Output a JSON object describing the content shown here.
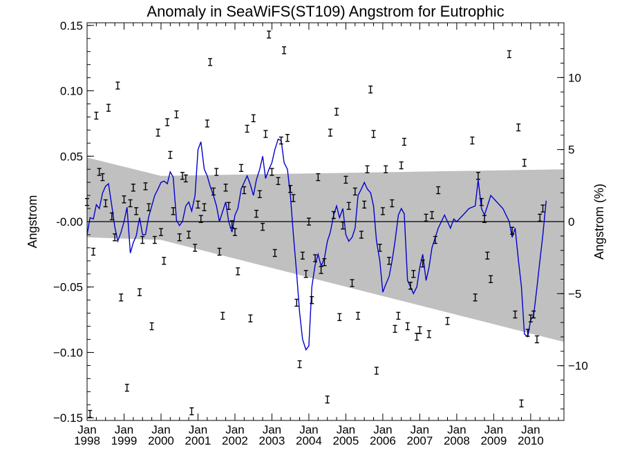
{
  "chart_data": {
    "type": "line",
    "title": "Anomaly in SeaWiFS(ST109) Angstrom for Eutrophic",
    "ylabel": "Angstrom",
    "ylabel_right": "Angstrom (%)",
    "xlim": [
      1998.0,
      2010.9
    ],
    "ylim": [
      -0.152,
      0.152
    ],
    "ylim_right": [
      -13.8,
      13.8
    ],
    "x_ticks": [
      {
        "x": 1998,
        "label_top": "Jan",
        "label_bottom": "1998"
      },
      {
        "x": 1999,
        "label_top": "Jan",
        "label_bottom": "1999"
      },
      {
        "x": 2000,
        "label_top": "Jan",
        "label_bottom": "2000"
      },
      {
        "x": 2001,
        "label_top": "Jan",
        "label_bottom": "2001"
      },
      {
        "x": 2002,
        "label_top": "Jan",
        "label_bottom": "2002"
      },
      {
        "x": 2003,
        "label_top": "Jan",
        "label_bottom": "2003"
      },
      {
        "x": 2004,
        "label_top": "Jan",
        "label_bottom": "2004"
      },
      {
        "x": 2005,
        "label_top": "Jan",
        "label_bottom": "2005"
      },
      {
        "x": 2006,
        "label_top": "Jan",
        "label_bottom": "2006"
      },
      {
        "x": 2007,
        "label_top": "Jan",
        "label_bottom": "2007"
      },
      {
        "x": 2008,
        "label_top": "Jan",
        "label_bottom": "2008"
      },
      {
        "x": 2009,
        "label_top": "Jan",
        "label_bottom": "2009"
      },
      {
        "x": 2010,
        "label_top": "Jan",
        "label_bottom": "2010"
      }
    ],
    "y_ticks": [
      {
        "v": 0.15,
        "label": "0.15"
      },
      {
        "v": 0.1,
        "label": "0.10"
      },
      {
        "v": 0.05,
        "label": "0.05"
      },
      {
        "v": 0.0,
        "label": "-0.00"
      },
      {
        "v": -0.05,
        "label": "−0.05"
      },
      {
        "v": -0.1,
        "label": "−0.10"
      },
      {
        "v": -0.15,
        "label": "−0.15"
      }
    ],
    "y_ticks_right": [
      {
        "v": 10,
        "label": "10"
      },
      {
        "v": 5,
        "label": "5"
      },
      {
        "v": 0,
        "label": "0"
      },
      {
        "v": -5,
        "label": "−5"
      },
      {
        "v": -10,
        "label": "−10"
      }
    ],
    "grey_band": {
      "upper": [
        [
          1998.0,
          0.049
        ],
        [
          2000.0,
          0.035
        ],
        [
          2010.9,
          0.04
        ]
      ],
      "lower": [
        [
          1998.0,
          -0.012
        ],
        [
          2000.0,
          -0.014
        ],
        [
          2010.9,
          -0.092
        ]
      ]
    },
    "colors": {
      "band": "#c0c0c0",
      "line": "#0000cc",
      "points": "#000000",
      "zero_line": "#000000"
    },
    "points": [
      [
        1998.0,
        0.015
      ],
      [
        1998.08,
        -0.147
      ],
      [
        1998.17,
        -0.023
      ],
      [
        1998.25,
        0.081
      ],
      [
        1998.33,
        0.038
      ],
      [
        1998.42,
        0.034
      ],
      [
        1998.5,
        0.014
      ],
      [
        1998.58,
        0.087
      ],
      [
        1998.67,
        0.004
      ],
      [
        1998.75,
        -0.012
      ],
      [
        1998.83,
        0.104
      ],
      [
        1998.92,
        -0.058
      ],
      [
        1999.0,
        0.017
      ],
      [
        1999.08,
        -0.127
      ],
      [
        1999.17,
        0.014
      ],
      [
        1999.25,
        0.026
      ],
      [
        1999.33,
        0.008
      ],
      [
        1999.42,
        -0.054
      ],
      [
        1999.5,
        -0.014
      ],
      [
        1999.58,
        0.027
      ],
      [
        1999.67,
        0.011
      ],
      [
        1999.75,
        -0.08
      ],
      [
        1999.83,
        -0.014
      ],
      [
        1999.92,
        0.068
      ],
      [
        2000.0,
        -0.008
      ],
      [
        2000.08,
        -0.03
      ],
      [
        2000.17,
        0.076
      ],
      [
        2000.25,
        0.051
      ],
      [
        2000.33,
        0.008
      ],
      [
        2000.42,
        0.082
      ],
      [
        2000.5,
        -0.012
      ],
      [
        2000.58,
        0.035
      ],
      [
        2000.67,
        0.033
      ],
      [
        2000.75,
        -0.01
      ],
      [
        2000.83,
        -0.145
      ],
      [
        2000.92,
        -0.02
      ],
      [
        2001.0,
        0.013
      ],
      [
        2001.08,
        0.002
      ],
      [
        2001.17,
        0.011
      ],
      [
        2001.25,
        0.075
      ],
      [
        2001.33,
        0.122
      ],
      [
        2001.42,
        0.023
      ],
      [
        2001.5,
        0.038
      ],
      [
        2001.58,
        -0.023
      ],
      [
        2001.67,
        -0.072
      ],
      [
        2001.75,
        0.026
      ],
      [
        2001.83,
        0.012
      ],
      [
        2001.92,
        -0.002
      ],
      [
        2002.0,
        -0.008
      ],
      [
        2002.08,
        -0.038
      ],
      [
        2002.17,
        0.041
      ],
      [
        2002.25,
        0.024
      ],
      [
        2002.33,
        0.071
      ],
      [
        2002.42,
        -0.074
      ],
      [
        2002.5,
        0.079
      ],
      [
        2002.58,
        0.006
      ],
      [
        2002.67,
        0.021
      ],
      [
        2002.75,
        -0.004
      ],
      [
        2002.83,
        0.067
      ],
      [
        2002.92,
        0.143
      ],
      [
        2003.0,
        0.038
      ],
      [
        2003.08,
        -0.024
      ],
      [
        2003.17,
        0.031
      ],
      [
        2003.25,
        0.062
      ],
      [
        2003.33,
        0.131
      ],
      [
        2003.42,
        0.064
      ],
      [
        2003.5,
        0.025
      ],
      [
        2003.58,
        0.018
      ],
      [
        2003.67,
        -0.062
      ],
      [
        2003.75,
        -0.109
      ],
      [
        2003.83,
        -0.026
      ],
      [
        2003.92,
        -0.04
      ],
      [
        2004.0,
        0.0
      ],
      [
        2004.08,
        -0.06
      ],
      [
        2004.17,
        -0.028
      ],
      [
        2004.25,
        0.034
      ],
      [
        2004.33,
        -0.037
      ],
      [
        2004.42,
        -0.031
      ],
      [
        2004.5,
        -0.136
      ],
      [
        2004.58,
        0.068
      ],
      [
        2004.67,
        0.005
      ],
      [
        2004.75,
        0.084
      ],
      [
        2004.83,
        -0.073
      ],
      [
        2004.92,
        -0.003
      ],
      [
        2005.0,
        0.032
      ],
      [
        2005.08,
        0.012
      ],
      [
        2005.17,
        -0.047
      ],
      [
        2005.25,
        0.023
      ],
      [
        2005.33,
        -0.072
      ],
      [
        2005.42,
        -0.01
      ],
      [
        2005.5,
        0.013
      ],
      [
        2005.58,
        0.04
      ],
      [
        2005.67,
        0.101
      ],
      [
        2005.75,
        0.067
      ],
      [
        2005.83,
        -0.114
      ],
      [
        2005.92,
        -0.02
      ],
      [
        2006.0,
        0.008
      ],
      [
        2006.08,
        0.04
      ],
      [
        2006.17,
        -0.03
      ],
      [
        2006.25,
        0.014
      ],
      [
        2006.33,
        -0.082
      ],
      [
        2006.42,
        -0.072
      ],
      [
        2006.5,
        0.043
      ],
      [
        2006.58,
        0.061
      ],
      [
        2006.67,
        -0.08
      ],
      [
        2006.75,
        -0.049
      ],
      [
        2006.83,
        -0.04
      ],
      [
        2006.92,
        -0.088
      ],
      [
        2007.0,
        -0.083
      ],
      [
        2007.08,
        -0.032
      ],
      [
        2007.17,
        0.003
      ],
      [
        2007.25,
        -0.086
      ],
      [
        2007.33,
        0.005
      ],
      [
        2007.42,
        -0.014
      ],
      [
        2007.5,
        0.024
      ],
      [
        2007.75,
        -0.076
      ],
      [
        2008.42,
        0.062
      ],
      [
        2008.5,
        -0.058
      ],
      [
        2008.58,
        0.035
      ],
      [
        2008.67,
        0.015
      ],
      [
        2008.75,
        0.002
      ],
      [
        2008.83,
        -0.026
      ],
      [
        2008.92,
        -0.044
      ],
      [
        2009.42,
        0.128
      ],
      [
        2009.5,
        -0.007
      ],
      [
        2009.58,
        -0.071
      ],
      [
        2009.67,
        0.072
      ],
      [
        2009.75,
        -0.139
      ],
      [
        2009.83,
        0.045
      ],
      [
        2009.92,
        -0.085
      ],
      [
        2010.0,
        -0.074
      ],
      [
        2010.08,
        -0.071
      ],
      [
        2010.17,
        -0.09
      ],
      [
        2010.25,
        0.003
      ],
      [
        2010.33,
        0.01
      ]
    ],
    "series": [
      {
        "values": [
          [
            1998.0,
            -0.01
          ],
          [
            1998.08,
            0.003
          ],
          [
            1998.17,
            0.002
          ],
          [
            1998.25,
            0.013
          ],
          [
            1998.33,
            0.01
          ],
          [
            1998.42,
            0.022
          ],
          [
            1998.5,
            0.027
          ],
          [
            1998.58,
            0.029
          ],
          [
            1998.67,
            0.012
          ],
          [
            1998.75,
            -0.004
          ],
          [
            1998.83,
            -0.015
          ],
          [
            1998.92,
            -0.008
          ],
          [
            1999.0,
            0.0
          ],
          [
            1999.08,
            0.011
          ],
          [
            1999.17,
            -0.024
          ],
          [
            1999.25,
            -0.016
          ],
          [
            1999.33,
            -0.011
          ],
          [
            1999.42,
            0.003
          ],
          [
            1999.5,
            -0.01
          ],
          [
            1999.58,
            -0.01
          ],
          [
            1999.67,
            0.004
          ],
          [
            1999.75,
            0.012
          ],
          [
            1999.83,
            0.02
          ],
          [
            1999.92,
            0.025
          ],
          [
            2000.0,
            0.03
          ],
          [
            2000.08,
            0.031
          ],
          [
            2000.17,
            0.029
          ],
          [
            2000.25,
            0.038
          ],
          [
            2000.33,
            0.034
          ],
          [
            2000.42,
            0.001
          ],
          [
            2000.5,
            -0.003
          ],
          [
            2000.58,
            0.0
          ],
          [
            2000.67,
            0.012
          ],
          [
            2000.75,
            0.015
          ],
          [
            2000.83,
            0.008
          ],
          [
            2000.92,
            0.02
          ],
          [
            2001.0,
            0.055
          ],
          [
            2001.08,
            0.061
          ],
          [
            2001.17,
            0.04
          ],
          [
            2001.25,
            0.035
          ],
          [
            2001.33,
            0.027
          ],
          [
            2001.42,
            0.02
          ],
          [
            2001.5,
            0.012
          ],
          [
            2001.58,
            0.0
          ],
          [
            2001.67,
            0.008
          ],
          [
            2001.75,
            0.015
          ],
          [
            2001.83,
            0.0
          ],
          [
            2001.92,
            -0.008
          ],
          [
            2002.0,
            0.005
          ],
          [
            2002.08,
            0.01
          ],
          [
            2002.17,
            0.025
          ],
          [
            2002.25,
            0.03
          ],
          [
            2002.33,
            0.035
          ],
          [
            2002.42,
            0.028
          ],
          [
            2002.5,
            0.02
          ],
          [
            2002.58,
            0.032
          ],
          [
            2002.67,
            0.04
          ],
          [
            2002.75,
            0.05
          ],
          [
            2002.83,
            0.033
          ],
          [
            2002.92,
            0.04
          ],
          [
            2003.0,
            0.045
          ],
          [
            2003.08,
            0.055
          ],
          [
            2003.17,
            0.063
          ],
          [
            2003.25,
            0.062
          ],
          [
            2003.33,
            0.045
          ],
          [
            2003.42,
            0.04
          ],
          [
            2003.5,
            0.02
          ],
          [
            2003.58,
            -0.01
          ],
          [
            2003.67,
            -0.04
          ],
          [
            2003.75,
            -0.07
          ],
          [
            2003.83,
            -0.09
          ],
          [
            2003.92,
            -0.098
          ],
          [
            2004.0,
            -0.095
          ],
          [
            2004.08,
            -0.05
          ],
          [
            2004.17,
            -0.033
          ],
          [
            2004.25,
            -0.025
          ],
          [
            2004.33,
            -0.034
          ],
          [
            2004.42,
            -0.028
          ],
          [
            2004.5,
            -0.015
          ],
          [
            2004.58,
            -0.008
          ],
          [
            2004.67,
            0.005
          ],
          [
            2004.75,
            0.012
          ],
          [
            2004.83,
            0.003
          ],
          [
            2004.92,
            0.01
          ],
          [
            2005.0,
            -0.01
          ],
          [
            2005.08,
            -0.015
          ],
          [
            2005.17,
            -0.012
          ],
          [
            2005.25,
            -0.005
          ],
          [
            2005.33,
            0.02
          ],
          [
            2005.42,
            0.025
          ],
          [
            2005.5,
            0.03
          ],
          [
            2005.58,
            0.025
          ],
          [
            2005.67,
            0.022
          ],
          [
            2005.75,
            0.012
          ],
          [
            2005.83,
            -0.015
          ],
          [
            2005.92,
            -0.03
          ],
          [
            2006.0,
            -0.054
          ],
          [
            2006.08,
            -0.048
          ],
          [
            2006.17,
            -0.042
          ],
          [
            2006.25,
            -0.03
          ],
          [
            2006.33,
            -0.015
          ],
          [
            2006.42,
            0.005
          ],
          [
            2006.5,
            0.01
          ],
          [
            2006.58,
            0.006
          ],
          [
            2006.67,
            -0.045
          ],
          [
            2006.75,
            -0.05
          ],
          [
            2006.83,
            -0.055
          ],
          [
            2006.92,
            -0.05
          ],
          [
            2007.0,
            -0.035
          ],
          [
            2007.08,
            -0.025
          ],
          [
            2007.17,
            -0.045
          ],
          [
            2007.25,
            -0.035
          ],
          [
            2007.33,
            -0.02
          ],
          [
            2007.5,
            -0.005
          ],
          [
            2007.67,
            0.005
          ],
          [
            2007.83,
            -0.005
          ],
          [
            2007.92,
            0.002
          ],
          [
            2008.0,
            0.0
          ],
          [
            2008.17,
            0.005
          ],
          [
            2008.33,
            0.01
          ],
          [
            2008.5,
            0.012
          ],
          [
            2008.58,
            0.032
          ],
          [
            2008.67,
            0.01
          ],
          [
            2008.75,
            0.005
          ],
          [
            2008.83,
            0.012
          ],
          [
            2008.92,
            0.02
          ],
          [
            2009.25,
            0.01
          ],
          [
            2009.42,
            0.0
          ],
          [
            2009.5,
            -0.012
          ],
          [
            2009.58,
            -0.005
          ],
          [
            2009.67,
            -0.03
          ],
          [
            2009.75,
            -0.05
          ],
          [
            2009.83,
            -0.086
          ],
          [
            2009.92,
            -0.088
          ],
          [
            2010.0,
            -0.075
          ],
          [
            2010.08,
            -0.072
          ],
          [
            2010.17,
            -0.05
          ],
          [
            2010.25,
            -0.03
          ],
          [
            2010.33,
            -0.01
          ],
          [
            2010.42,
            0.016
          ]
        ]
      }
    ]
  }
}
